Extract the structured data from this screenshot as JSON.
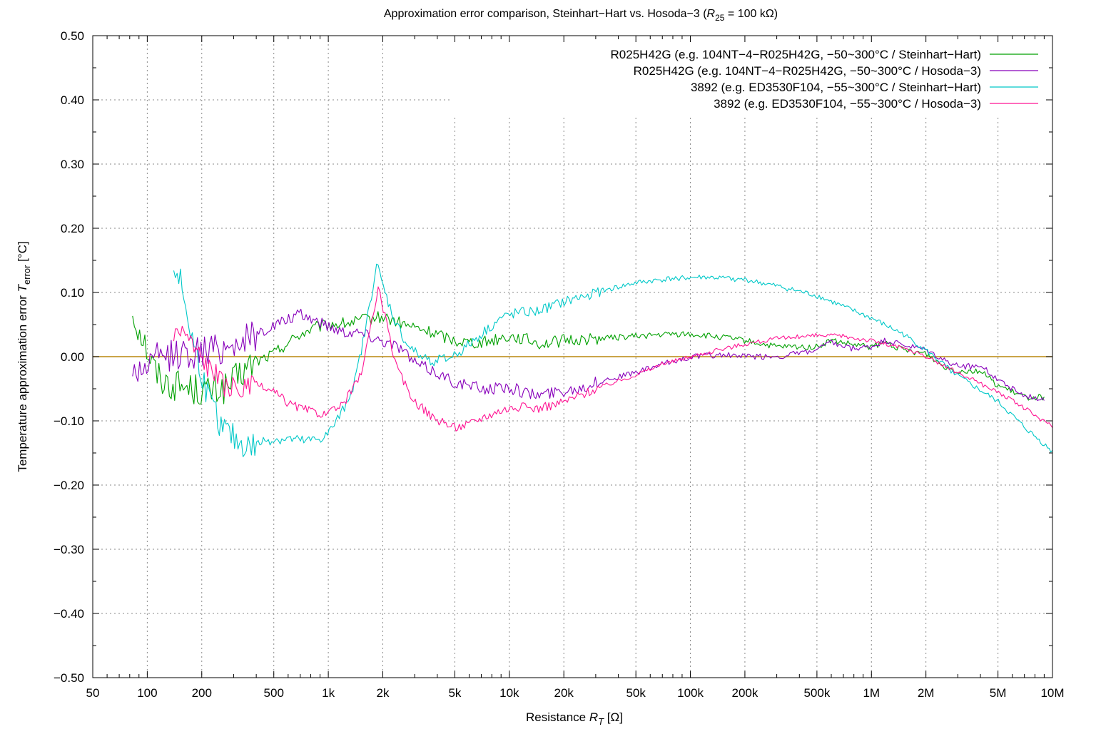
{
  "chart_data": {
    "type": "line",
    "title": {
      "prefix": "Approximation error comparison, Steinhart−Hart vs. Hosoda−3 (",
      "var": "R",
      "sub": "25",
      "suffix": " = 100 kΩ)"
    },
    "xlabel": {
      "prefix": "Resistance ",
      "var": "R",
      "sub": "T",
      "suffix": " [Ω]"
    },
    "ylabel": {
      "prefix": "Temperature approximation error ",
      "var": "T",
      "sub": "error",
      "suffix": " [°C]"
    },
    "x_scale": "log",
    "xlim": [
      50,
      10000000
    ],
    "ylim": [
      -0.5,
      0.5
    ],
    "grid": true,
    "legend_position": "top-right",
    "zero_line_color": "#b8860b",
    "x_ticks": [
      {
        "value": 50,
        "label": "50"
      },
      {
        "value": 100,
        "label": "100"
      },
      {
        "value": 200,
        "label": "200"
      },
      {
        "value": 500,
        "label": "500"
      },
      {
        "value": 1000,
        "label": "1k"
      },
      {
        "value": 2000,
        "label": "2k"
      },
      {
        "value": 5000,
        "label": "5k"
      },
      {
        "value": 10000,
        "label": "10k"
      },
      {
        "value": 20000,
        "label": "20k"
      },
      {
        "value": 50000,
        "label": "50k"
      },
      {
        "value": 100000,
        "label": "100k"
      },
      {
        "value": 200000,
        "label": "200k"
      },
      {
        "value": 500000,
        "label": "500k"
      },
      {
        "value": 1000000,
        "label": "1M"
      },
      {
        "value": 2000000,
        "label": "2M"
      },
      {
        "value": 5000000,
        "label": "5M"
      },
      {
        "value": 10000000,
        "label": "10M"
      }
    ],
    "y_ticks": [
      {
        "value": 0.5,
        "label": "0.50"
      },
      {
        "value": 0.4,
        "label": "0.40"
      },
      {
        "value": 0.3,
        "label": "0.30"
      },
      {
        "value": 0.2,
        "label": "0.20"
      },
      {
        "value": 0.1,
        "label": "0.10"
      },
      {
        "value": 0.0,
        "label": "0.00"
      },
      {
        "value": -0.1,
        "label": "−0.10"
      },
      {
        "value": -0.2,
        "label": "−0.20"
      },
      {
        "value": -0.3,
        "label": "−0.30"
      },
      {
        "value": -0.4,
        "label": "−0.40"
      },
      {
        "value": -0.5,
        "label": "−0.50"
      }
    ],
    "series": [
      {
        "name": "R025H42G (e.g. 104NT−4−R025H42G, −50~300°C / Steinhart−Hart)",
        "color": "#00a000",
        "noise": 0.008,
        "points": [
          [
            83,
            0.068
          ],
          [
            88,
            0.05
          ],
          [
            95,
            0.03
          ],
          [
            105,
            -0.008
          ],
          [
            115,
            -0.03
          ],
          [
            130,
            -0.042
          ],
          [
            150,
            -0.045
          ],
          [
            180,
            -0.05
          ],
          [
            220,
            -0.055
          ],
          [
            280,
            -0.048
          ],
          [
            350,
            -0.02
          ],
          [
            420,
            -0.005
          ],
          [
            500,
            0.005
          ],
          [
            600,
            0.022
          ],
          [
            700,
            0.035
          ],
          [
            850,
            0.045
          ],
          [
            1000,
            0.05
          ],
          [
            1300,
            0.052
          ],
          [
            1600,
            0.058
          ],
          [
            2000,
            0.062
          ],
          [
            2500,
            0.052
          ],
          [
            3000,
            0.045
          ],
          [
            4000,
            0.035
          ],
          [
            5000,
            0.025
          ],
          [
            7000,
            0.022
          ],
          [
            10000,
            0.032
          ],
          [
            12000,
            0.028
          ],
          [
            15000,
            0.02
          ],
          [
            20000,
            0.025
          ],
          [
            30000,
            0.028
          ],
          [
            50000,
            0.032
          ],
          [
            80000,
            0.035
          ],
          [
            100000,
            0.035
          ],
          [
            150000,
            0.03
          ],
          [
            200000,
            0.025
          ],
          [
            300000,
            0.015
          ],
          [
            500000,
            0.015
          ],
          [
            600000,
            0.025
          ],
          [
            800000,
            0.018
          ],
          [
            1000000,
            0.015
          ],
          [
            1200000,
            0.022
          ],
          [
            1500000,
            0.01
          ],
          [
            2000000,
            0.005
          ],
          [
            2500000,
            -0.015
          ],
          [
            3000000,
            -0.022
          ],
          [
            4000000,
            -0.022
          ],
          [
            5000000,
            -0.045
          ],
          [
            7000000,
            -0.063
          ],
          [
            9000000,
            -0.063
          ]
        ]
      },
      {
        "name": "R025H42G (e.g. 104NT−4−R025H42G, −50~300°C / Hosoda−3)",
        "color": "#8800bb",
        "noise": 0.008,
        "points": [
          [
            83,
            -0.025
          ],
          [
            90,
            -0.02
          ],
          [
            100,
            -0.015
          ],
          [
            110,
            -0.005
          ],
          [
            130,
            0.002
          ],
          [
            160,
            0.005
          ],
          [
            200,
            0.008
          ],
          [
            250,
            0.012
          ],
          [
            300,
            0.02
          ],
          [
            400,
            0.035
          ],
          [
            500,
            0.048
          ],
          [
            600,
            0.058
          ],
          [
            700,
            0.065
          ],
          [
            800,
            0.06
          ],
          [
            1000,
            0.048
          ],
          [
            1200,
            0.04
          ],
          [
            1500,
            0.038
          ],
          [
            1800,
            0.03
          ],
          [
            2000,
            0.025
          ],
          [
            2500,
            0.015
          ],
          [
            3000,
            -0.01
          ],
          [
            4000,
            -0.025
          ],
          [
            5000,
            -0.04
          ],
          [
            7000,
            -0.05
          ],
          [
            10000,
            -0.048
          ],
          [
            12000,
            -0.055
          ],
          [
            14000,
            -0.06
          ],
          [
            18000,
            -0.055
          ],
          [
            25000,
            -0.048
          ],
          [
            35000,
            -0.035
          ],
          [
            50000,
            -0.025
          ],
          [
            70000,
            -0.012
          ],
          [
            100000,
            0.0
          ],
          [
            150000,
            0.003
          ],
          [
            200000,
            0.0
          ],
          [
            300000,
            0.0
          ],
          [
            400000,
            0.005
          ],
          [
            500000,
            0.01
          ],
          [
            600000,
            0.022
          ],
          [
            700000,
            0.015
          ],
          [
            800000,
            0.012
          ],
          [
            1000000,
            0.015
          ],
          [
            1200000,
            0.025
          ],
          [
            1500000,
            0.018
          ],
          [
            2000000,
            0.01
          ],
          [
            2500000,
            -0.005
          ],
          [
            3000000,
            -0.015
          ],
          [
            4000000,
            -0.015
          ],
          [
            5000000,
            -0.035
          ],
          [
            7000000,
            -0.062
          ],
          [
            9000000,
            -0.065
          ]
        ]
      },
      {
        "name": "3892 (e.g. ED3530F104, −55~300°C / Steinhart−Hart)",
        "color": "#00c8c8",
        "noise": 0.007,
        "points": [
          [
            140,
            0.14
          ],
          [
            150,
            0.125
          ],
          [
            160,
            0.09
          ],
          [
            170,
            0.05
          ],
          [
            180,
            0.02
          ],
          [
            200,
            -0.025
          ],
          [
            220,
            -0.07
          ],
          [
            260,
            -0.11
          ],
          [
            320,
            -0.135
          ],
          [
            380,
            -0.14
          ],
          [
            450,
            -0.13
          ],
          [
            600,
            -0.128
          ],
          [
            750,
            -0.132
          ],
          [
            900,
            -0.128
          ],
          [
            1000,
            -0.12
          ],
          [
            1200,
            -0.085
          ],
          [
            1400,
            -0.04
          ],
          [
            1600,
            0.04
          ],
          [
            1850,
            0.145
          ],
          [
            2000,
            0.11
          ],
          [
            2300,
            0.06
          ],
          [
            2700,
            0.02
          ],
          [
            3200,
            0.0
          ],
          [
            3800,
            -0.006
          ],
          [
            4500,
            -0.004
          ],
          [
            5500,
            0.01
          ],
          [
            7000,
            0.035
          ],
          [
            9000,
            0.06
          ],
          [
            11000,
            0.068
          ],
          [
            14000,
            0.07
          ],
          [
            20000,
            0.085
          ],
          [
            30000,
            0.1
          ],
          [
            50000,
            0.115
          ],
          [
            80000,
            0.122
          ],
          [
            120000,
            0.124
          ],
          [
            200000,
            0.12
          ],
          [
            300000,
            0.11
          ],
          [
            500000,
            0.095
          ],
          [
            1000000,
            0.06
          ],
          [
            1500000,
            0.035
          ],
          [
            2000000,
            0.01
          ],
          [
            3000000,
            -0.03
          ],
          [
            5000000,
            -0.07
          ],
          [
            7000000,
            -0.11
          ],
          [
            10000000,
            -0.148
          ]
        ]
      },
      {
        "name": "3892 (e.g. ED3530F104, −55~300°C / Hosoda−3)",
        "color": "#ff1493",
        "noise": 0.006,
        "points": [
          [
            140,
            0.03
          ],
          [
            150,
            0.045
          ],
          [
            160,
            0.04
          ],
          [
            170,
            0.03
          ],
          [
            180,
            0.015
          ],
          [
            200,
            0.0
          ],
          [
            230,
            -0.025
          ],
          [
            280,
            -0.05
          ],
          [
            350,
            -0.05
          ],
          [
            400,
            -0.045
          ],
          [
            500,
            -0.055
          ],
          [
            600,
            -0.072
          ],
          [
            700,
            -0.08
          ],
          [
            800,
            -0.085
          ],
          [
            1000,
            -0.09
          ],
          [
            1200,
            -0.075
          ],
          [
            1500,
            -0.03
          ],
          [
            1700,
            0.04
          ],
          [
            1900,
            0.11
          ],
          [
            2100,
            0.05
          ],
          [
            2400,
            -0.02
          ],
          [
            3000,
            -0.07
          ],
          [
            4000,
            -0.1
          ],
          [
            5000,
            -0.11
          ],
          [
            6000,
            -0.105
          ],
          [
            7000,
            -0.095
          ],
          [
            9000,
            -0.083
          ],
          [
            11000,
            -0.078
          ],
          [
            13000,
            -0.08
          ],
          [
            15000,
            -0.08
          ],
          [
            20000,
            -0.07
          ],
          [
            30000,
            -0.05
          ],
          [
            50000,
            -0.028
          ],
          [
            70000,
            -0.012
          ],
          [
            100000,
            0.0
          ],
          [
            200000,
            0.02
          ],
          [
            300000,
            0.028
          ],
          [
            500000,
            0.033
          ],
          [
            700000,
            0.032
          ],
          [
            1000000,
            0.025
          ],
          [
            1500000,
            0.013
          ],
          [
            2000000,
            0.0
          ],
          [
            3000000,
            -0.025
          ],
          [
            5000000,
            -0.055
          ],
          [
            7000000,
            -0.08
          ],
          [
            10000000,
            -0.11
          ]
        ]
      }
    ]
  }
}
